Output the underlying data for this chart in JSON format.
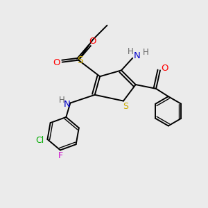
{
  "bg_color": "#ebebeb",
  "colors": {
    "C": "#000000",
    "N": "#0000cc",
    "O": "#ff0000",
    "S": "#ccaa00",
    "Cl": "#00aa00",
    "F": "#cc00cc",
    "H": "#666666"
  }
}
